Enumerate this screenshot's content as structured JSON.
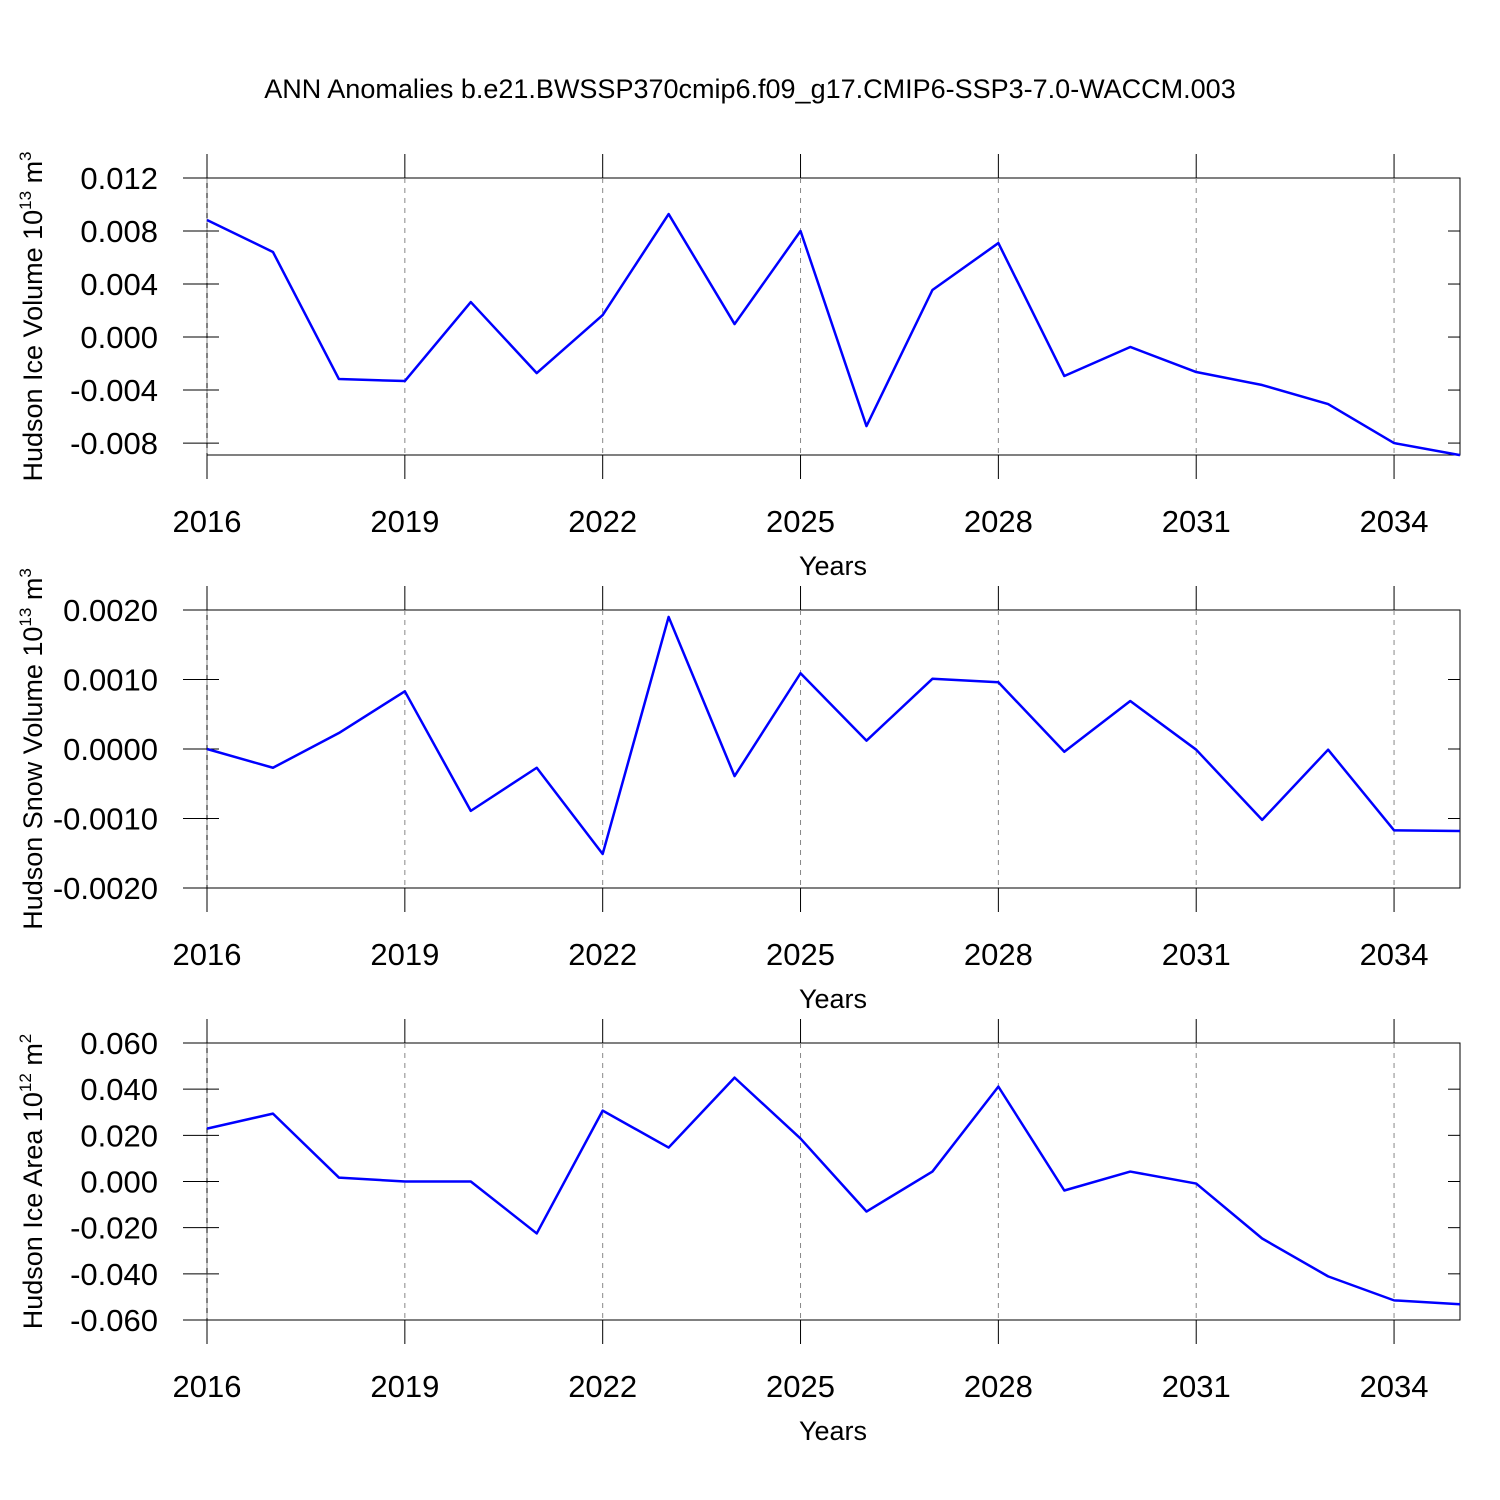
{
  "chart_data": [
    {
      "type": "line",
      "title": "ANN Anomalies b.e21.BWSSP370cmip6.f09_g17.CMIP6-SSP3-7.0-WACCM.003",
      "ylabel": [
        "Hudson Ice Volume 10",
        "13",
        " m",
        "3"
      ],
      "xlabel": "Years",
      "x": [
        2016,
        2017,
        2018,
        2019,
        2020,
        2021,
        2022,
        2023,
        2024,
        2025,
        2026,
        2027,
        2028,
        2029,
        2030,
        2031,
        2032,
        2033,
        2034,
        2035
      ],
      "values": [
        0.00883,
        0.00642,
        -0.00317,
        -0.00332,
        0.00264,
        -0.00272,
        0.00166,
        0.00928,
        0.00098,
        0.008,
        -0.00672,
        0.00355,
        0.00709,
        -0.00294,
        -0.00075,
        -0.00264,
        -0.00362,
        -0.00506,
        -0.008,
        -0.00891
      ],
      "color": "#0000ff",
      "xlim": [
        2016,
        2035
      ],
      "xticks": [
        2016,
        2019,
        2022,
        2025,
        2028,
        2031,
        2034
      ],
      "ylim": [
        -0.0089,
        0.012
      ],
      "yticks": [
        {
          "value": 0.012,
          "label": "0.012"
        },
        {
          "value": 0.008,
          "label": "0.008"
        },
        {
          "value": 0.004,
          "label": "0.004"
        },
        {
          "value": 0,
          "label": "0.000"
        },
        {
          "value": -0.004,
          "label": "-0.004"
        },
        {
          "value": -0.008,
          "label": "-0.008"
        }
      ],
      "grid": true
    },
    {
      "type": "line",
      "ylabel": [
        "Hudson Snow Volume 10",
        "13",
        " m",
        "3"
      ],
      "xlabel": "Years",
      "x": [
        2016,
        2017,
        2018,
        2019,
        2020,
        2021,
        2022,
        2023,
        2024,
        2025,
        2026,
        2027,
        2028,
        2029,
        2030,
        2031,
        2032,
        2033,
        2034,
        2035
      ],
      "values": [
        0.0,
        -0.00027,
        0.00023,
        0.00083,
        -0.00089,
        -0.00027,
        -0.00151,
        0.0019,
        -0.00039,
        0.00109,
        0.00012,
        0.00101,
        0.00096,
        -4e-05,
        0.00069,
        -1e-05,
        -0.00102,
        -1e-05,
        -0.00117,
        -0.00118
      ],
      "color": "#0000ff",
      "xlim": [
        2016,
        2035
      ],
      "xticks": [
        2016,
        2019,
        2022,
        2025,
        2028,
        2031,
        2034
      ],
      "ylim": [
        -0.002,
        0.002
      ],
      "yticks": [
        {
          "value": 0.002,
          "label": "0.0020"
        },
        {
          "value": 0.001,
          "label": "0.0010"
        },
        {
          "value": 0,
          "label": "0.0000"
        },
        {
          "value": -0.001,
          "label": "-0.0010"
        },
        {
          "value": -0.002,
          "label": "-0.0020"
        }
      ],
      "grid": true
    },
    {
      "type": "line",
      "ylabel": [
        "Hudson Ice Area 10",
        "12",
        " m",
        "2"
      ],
      "xlabel": "Years",
      "x": [
        2016,
        2017,
        2018,
        2019,
        2020,
        2021,
        2022,
        2023,
        2024,
        2025,
        2026,
        2027,
        2028,
        2029,
        2030,
        2031,
        2032,
        2033,
        2034,
        2035
      ],
      "values": [
        0.0229,
        0.0294,
        0.0017,
        0.0,
        0.0,
        -0.0225,
        0.0307,
        0.0147,
        0.045,
        0.0186,
        -0.013,
        0.0043,
        0.0411,
        -0.0039,
        0.0043,
        -0.0009,
        -0.0247,
        -0.0411,
        -0.0515,
        -0.0532
      ],
      "color": "#0000ff",
      "xlim": [
        2016,
        2035
      ],
      "xticks": [
        2016,
        2019,
        2022,
        2025,
        2028,
        2031,
        2034
      ],
      "ylim": [
        -0.06,
        0.06
      ],
      "yticks": [
        {
          "value": 0.06,
          "label": "0.060"
        },
        {
          "value": 0.04,
          "label": "0.040"
        },
        {
          "value": 0.02,
          "label": "0.020"
        },
        {
          "value": 0,
          "label": "0.000"
        },
        {
          "value": -0.02,
          "label": "-0.020"
        },
        {
          "value": -0.04,
          "label": "-0.040"
        },
        {
          "value": -0.06,
          "label": "-0.060"
        }
      ],
      "grid": true
    }
  ]
}
